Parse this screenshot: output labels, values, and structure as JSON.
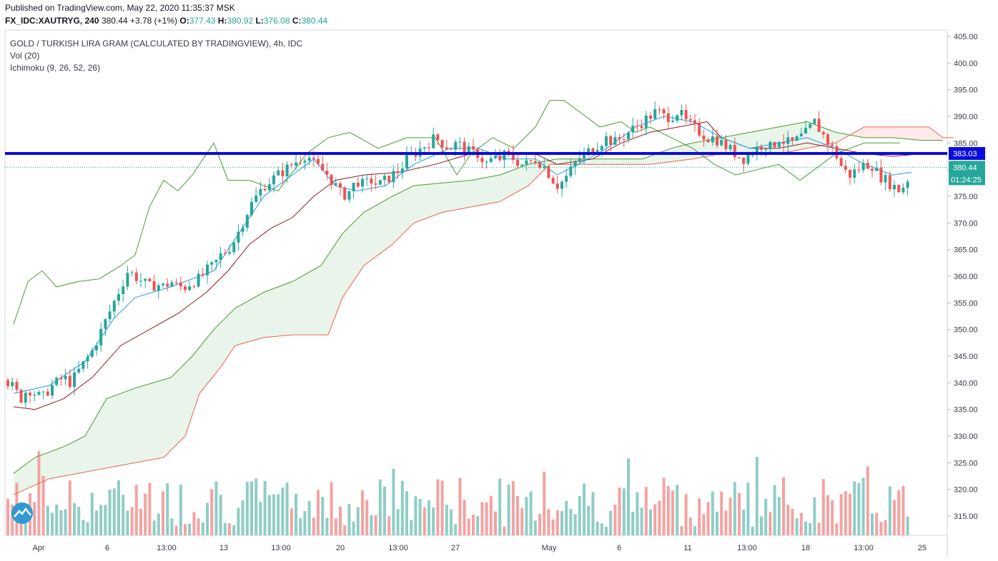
{
  "header": {
    "published": "Published on TradingView.com, May 22, 2020 11:35:37 MSK",
    "symbol": "FX_IDC:XAUTRYG, 240",
    "last": "380.44",
    "change": "+3.78 (+1%)",
    "o_label": "O:",
    "o": "377.43",
    "h_label": "H:",
    "h": "380.92",
    "l_label": "L:",
    "l": "376.08",
    "c_label": "C:",
    "c": "380.44"
  },
  "legend": {
    "title": "GOLD / TURKISH LIRA GRAM (CALCULATED BY TRADINGVIEW), 4h, IDC",
    "vol": "Vol (20)",
    "ichimoku": "Ichimoku (9, 26, 52, 26)"
  },
  "tags": {
    "level": "383.03",
    "last": "380.44",
    "countdown": "01:24:25"
  },
  "colors": {
    "up": "#26a69a",
    "down": "#ef5350",
    "vol_up": "#8fcdc6",
    "vol_down": "#f3a3a1",
    "tenkan": "#2196f3",
    "kijun": "#8e1c1c",
    "span_a": "#4a9a32",
    "span_b": "#f0604d",
    "chikou": "#4a9a32",
    "level_line": "#0b0bdd",
    "last_tag": "#26a69a"
  },
  "chart_data": {
    "type": "candlestick",
    "y_ticks": [
      "405.00",
      "400.00",
      "395.00",
      "390.00",
      "385.00",
      "380.00",
      "375.00",
      "370.00",
      "365.00",
      "360.00",
      "355.00",
      "350.00",
      "345.00",
      "340.00",
      "335.00",
      "330.00",
      "325.00",
      "320.00",
      "315.00"
    ],
    "ylim": [
      311,
      406
    ],
    "x_ticks": [
      "Apr",
      "6",
      "13:00",
      "13",
      "13:00",
      "20",
      "13:00",
      "27",
      "May",
      "6",
      "11",
      "13:00",
      "18",
      "13:00",
      "25"
    ],
    "horizontal_level": 383.03,
    "last_price": 380.44,
    "price_points": [
      [
        0,
        340.5
      ],
      [
        10,
        339
      ],
      [
        20,
        337
      ],
      [
        30,
        339
      ],
      [
        40,
        338
      ],
      [
        50,
        337
      ],
      [
        60,
        339
      ],
      [
        70,
        340
      ],
      [
        80,
        341
      ],
      [
        90,
        340
      ],
      [
        100,
        342
      ],
      [
        110,
        344
      ],
      [
        120,
        346
      ],
      [
        130,
        349
      ],
      [
        140,
        352
      ],
      [
        150,
        355
      ],
      [
        160,
        358
      ],
      [
        170,
        361
      ],
      [
        180,
        360
      ],
      [
        190,
        359
      ],
      [
        200,
        358
      ],
      [
        210,
        358.5
      ],
      [
        220,
        358
      ],
      [
        230,
        359
      ],
      [
        240,
        358
      ],
      [
        250,
        358
      ],
      [
        260,
        359
      ],
      [
        270,
        359.5
      ],
      [
        280,
        361
      ],
      [
        290,
        362
      ],
      [
        300,
        364
      ],
      [
        310,
        365
      ],
      [
        320,
        367
      ],
      [
        330,
        370
      ],
      [
        340,
        373
      ],
      [
        350,
        375
      ],
      [
        360,
        377
      ],
      [
        370,
        378
      ],
      [
        380,
        379
      ],
      [
        390,
        380
      ],
      [
        400,
        381
      ],
      [
        410,
        382
      ],
      [
        420,
        383
      ],
      [
        430,
        381
      ],
      [
        440,
        380
      ],
      [
        450,
        379
      ],
      [
        460,
        377
      ],
      [
        470,
        375
      ],
      [
        480,
        376
      ],
      [
        490,
        378
      ],
      [
        500,
        377
      ],
      [
        510,
        378
      ],
      [
        520,
        377
      ],
      [
        530,
        378
      ],
      [
        540,
        379
      ],
      [
        550,
        380
      ],
      [
        560,
        382
      ],
      [
        570,
        383
      ],
      [
        580,
        384
      ],
      [
        590,
        385
      ],
      [
        600,
        386
      ],
      [
        610,
        385
      ],
      [
        620,
        384
      ],
      [
        630,
        385
      ],
      [
        640,
        384
      ],
      [
        650,
        383
      ],
      [
        660,
        383
      ],
      [
        670,
        381
      ],
      [
        680,
        382
      ],
      [
        690,
        382
      ],
      [
        700,
        383
      ],
      [
        710,
        382
      ],
      [
        720,
        381
      ],
      [
        730,
        381
      ],
      [
        740,
        382
      ],
      [
        750,
        381
      ],
      [
        760,
        379
      ],
      [
        770,
        377
      ],
      [
        780,
        378
      ],
      [
        790,
        380
      ],
      [
        800,
        382
      ],
      [
        810,
        383
      ],
      [
        820,
        384
      ],
      [
        830,
        385
      ],
      [
        840,
        386
      ],
      [
        850,
        385
      ],
      [
        860,
        386
      ],
      [
        870,
        387
      ],
      [
        880,
        388
      ],
      [
        890,
        389
      ],
      [
        900,
        390
      ],
      [
        910,
        391
      ],
      [
        920,
        390
      ],
      [
        930,
        390
      ],
      [
        940,
        391
      ],
      [
        950,
        389
      ],
      [
        960,
        388
      ],
      [
        970,
        387
      ],
      [
        980,
        386
      ],
      [
        990,
        386
      ],
      [
        1000,
        385
      ],
      [
        1010,
        384
      ],
      [
        1020,
        383
      ],
      [
        1030,
        382
      ],
      [
        1040,
        383
      ],
      [
        1050,
        384
      ],
      [
        1060,
        385
      ],
      [
        1070,
        384
      ],
      [
        1080,
        386
      ],
      [
        1090,
        385
      ],
      [
        1100,
        385
      ],
      [
        1110,
        386
      ],
      [
        1120,
        387
      ],
      [
        1130,
        389
      ],
      [
        1140,
        387
      ],
      [
        1150,
        385
      ],
      [
        1160,
        383
      ],
      [
        1170,
        380
      ],
      [
        1180,
        379
      ],
      [
        1190,
        380
      ],
      [
        1200,
        381
      ],
      [
        1210,
        381
      ],
      [
        1220,
        379
      ],
      [
        1230,
        378
      ],
      [
        1240,
        377
      ],
      [
        1250,
        376
      ],
      [
        1260,
        378
      ],
      [
        1266,
        380.44
      ]
    ],
    "tenkan": [
      [
        10,
        338
      ],
      [
        60,
        339.5
      ],
      [
        110,
        344
      ],
      [
        150,
        352
      ],
      [
        180,
        356
      ],
      [
        230,
        358
      ],
      [
        290,
        361
      ],
      [
        330,
        369
      ],
      [
        360,
        375
      ],
      [
        400,
        379
      ],
      [
        430,
        382
      ],
      [
        460,
        377
      ],
      [
        490,
        376
      ],
      [
        530,
        377
      ],
      [
        570,
        381
      ],
      [
        620,
        384
      ],
      [
        660,
        384
      ],
      [
        700,
        382
      ],
      [
        740,
        382
      ],
      [
        770,
        379
      ],
      [
        800,
        381
      ],
      [
        840,
        384
      ],
      [
        880,
        388
      ],
      [
        920,
        390
      ],
      [
        960,
        389
      ],
      [
        1000,
        386
      ],
      [
        1040,
        384
      ],
      [
        1080,
        385
      ],
      [
        1120,
        386
      ],
      [
        1160,
        384
      ],
      [
        1200,
        381
      ],
      [
        1240,
        379
      ],
      [
        1266,
        379.5
      ]
    ],
    "kijun": [
      [
        10,
        335.5
      ],
      [
        40,
        335
      ],
      [
        80,
        337
      ],
      [
        120,
        341
      ],
      [
        160,
        347
      ],
      [
        200,
        350
      ],
      [
        240,
        353
      ],
      [
        280,
        357
      ],
      [
        310,
        361
      ],
      [
        340,
        366
      ],
      [
        370,
        369
      ],
      [
        400,
        371
      ],
      [
        430,
        375
      ],
      [
        460,
        378
      ],
      [
        500,
        379
      ],
      [
        550,
        379.5
      ],
      [
        600,
        381
      ],
      [
        650,
        383
      ],
      [
        700,
        383
      ],
      [
        740,
        383
      ],
      [
        770,
        381
      ],
      [
        820,
        382
      ],
      [
        860,
        385
      ],
      [
        900,
        387
      ],
      [
        940,
        388
      ],
      [
        980,
        389
      ],
      [
        1000,
        386
      ],
      [
        1040,
        384
      ],
      [
        1080,
        384
      ],
      [
        1120,
        385
      ],
      [
        1160,
        384
      ],
      [
        1200,
        383
      ],
      [
        1240,
        382.5
      ],
      [
        1266,
        382.8
      ]
    ],
    "span_a": [
      [
        10,
        323
      ],
      [
        40,
        326
      ],
      [
        80,
        328
      ],
      [
        110,
        330
      ],
      [
        140,
        337
      ],
      [
        180,
        339
      ],
      [
        230,
        341
      ],
      [
        260,
        345
      ],
      [
        290,
        350
      ],
      [
        320,
        354
      ],
      [
        360,
        357
      ],
      [
        400,
        359
      ],
      [
        440,
        362
      ],
      [
        470,
        368
      ],
      [
        500,
        372
      ],
      [
        540,
        375
      ],
      [
        570,
        377
      ],
      [
        610,
        377.5
      ],
      [
        650,
        378
      ],
      [
        690,
        379
      ],
      [
        730,
        381
      ],
      [
        770,
        382
      ],
      [
        810,
        382
      ],
      [
        850,
        382
      ],
      [
        890,
        382
      ],
      [
        930,
        384
      ],
      [
        960,
        385
      ],
      [
        1000,
        386
      ],
      [
        1040,
        387
      ],
      [
        1080,
        388
      ],
      [
        1120,
        389
      ],
      [
        1160,
        387
      ],
      [
        1200,
        386
      ],
      [
        1240,
        386
      ],
      [
        1280,
        385.5
      ],
      [
        1310,
        385.5
      ]
    ],
    "span_b": [
      [
        10,
        319
      ],
      [
        60,
        322
      ],
      [
        100,
        323
      ],
      [
        140,
        324
      ],
      [
        180,
        325
      ],
      [
        220,
        326
      ],
      [
        250,
        330
      ],
      [
        270,
        338
      ],
      [
        300,
        343
      ],
      [
        320,
        347
      ],
      [
        360,
        348.5
      ],
      [
        400,
        349
      ],
      [
        450,
        349
      ],
      [
        470,
        356
      ],
      [
        500,
        362
      ],
      [
        540,
        366
      ],
      [
        570,
        370
      ],
      [
        610,
        372
      ],
      [
        650,
        373
      ],
      [
        690,
        374
      ],
      [
        730,
        377
      ],
      [
        760,
        381
      ],
      [
        800,
        381
      ],
      [
        850,
        381
      ],
      [
        900,
        381
      ],
      [
        960,
        382
      ],
      [
        1000,
        383
      ],
      [
        1040,
        383
      ],
      [
        1080,
        383
      ],
      [
        1120,
        384
      ],
      [
        1160,
        385
      ],
      [
        1200,
        388
      ],
      [
        1240,
        388
      ],
      [
        1290,
        388
      ],
      [
        1310,
        386
      ],
      [
        1325,
        386
      ]
    ],
    "chikou": [
      [
        10,
        351
      ],
      [
        30,
        359
      ],
      [
        50,
        361
      ],
      [
        70,
        358
      ],
      [
        100,
        359
      ],
      [
        130,
        359.5
      ],
      [
        160,
        362
      ],
      [
        180,
        364
      ],
      [
        200,
        373
      ],
      [
        220,
        378
      ],
      [
        240,
        376
      ],
      [
        260,
        379
      ],
      [
        290,
        385
      ],
      [
        310,
        378
      ],
      [
        340,
        378
      ],
      [
        380,
        376
      ],
      [
        420,
        383
      ],
      [
        450,
        386
      ],
      [
        480,
        387
      ],
      [
        520,
        384
      ],
      [
        560,
        386
      ],
      [
        600,
        386
      ],
      [
        630,
        379
      ],
      [
        650,
        383
      ],
      [
        680,
        386
      ],
      [
        710,
        384
      ],
      [
        740,
        388
      ],
      [
        760,
        393
      ],
      [
        780,
        393
      ],
      [
        800,
        391
      ],
      [
        830,
        388
      ],
      [
        860,
        389
      ],
      [
        880,
        387
      ],
      [
        900,
        388
      ],
      [
        930,
        386
      ],
      [
        960,
        384
      ],
      [
        990,
        381
      ],
      [
        1020,
        379
      ],
      [
        1050,
        380
      ],
      [
        1080,
        381
      ],
      [
        1110,
        378
      ],
      [
        1130,
        380
      ],
      [
        1160,
        383
      ],
      [
        1200,
        385
      ],
      [
        1250,
        385
      ]
    ]
  }
}
